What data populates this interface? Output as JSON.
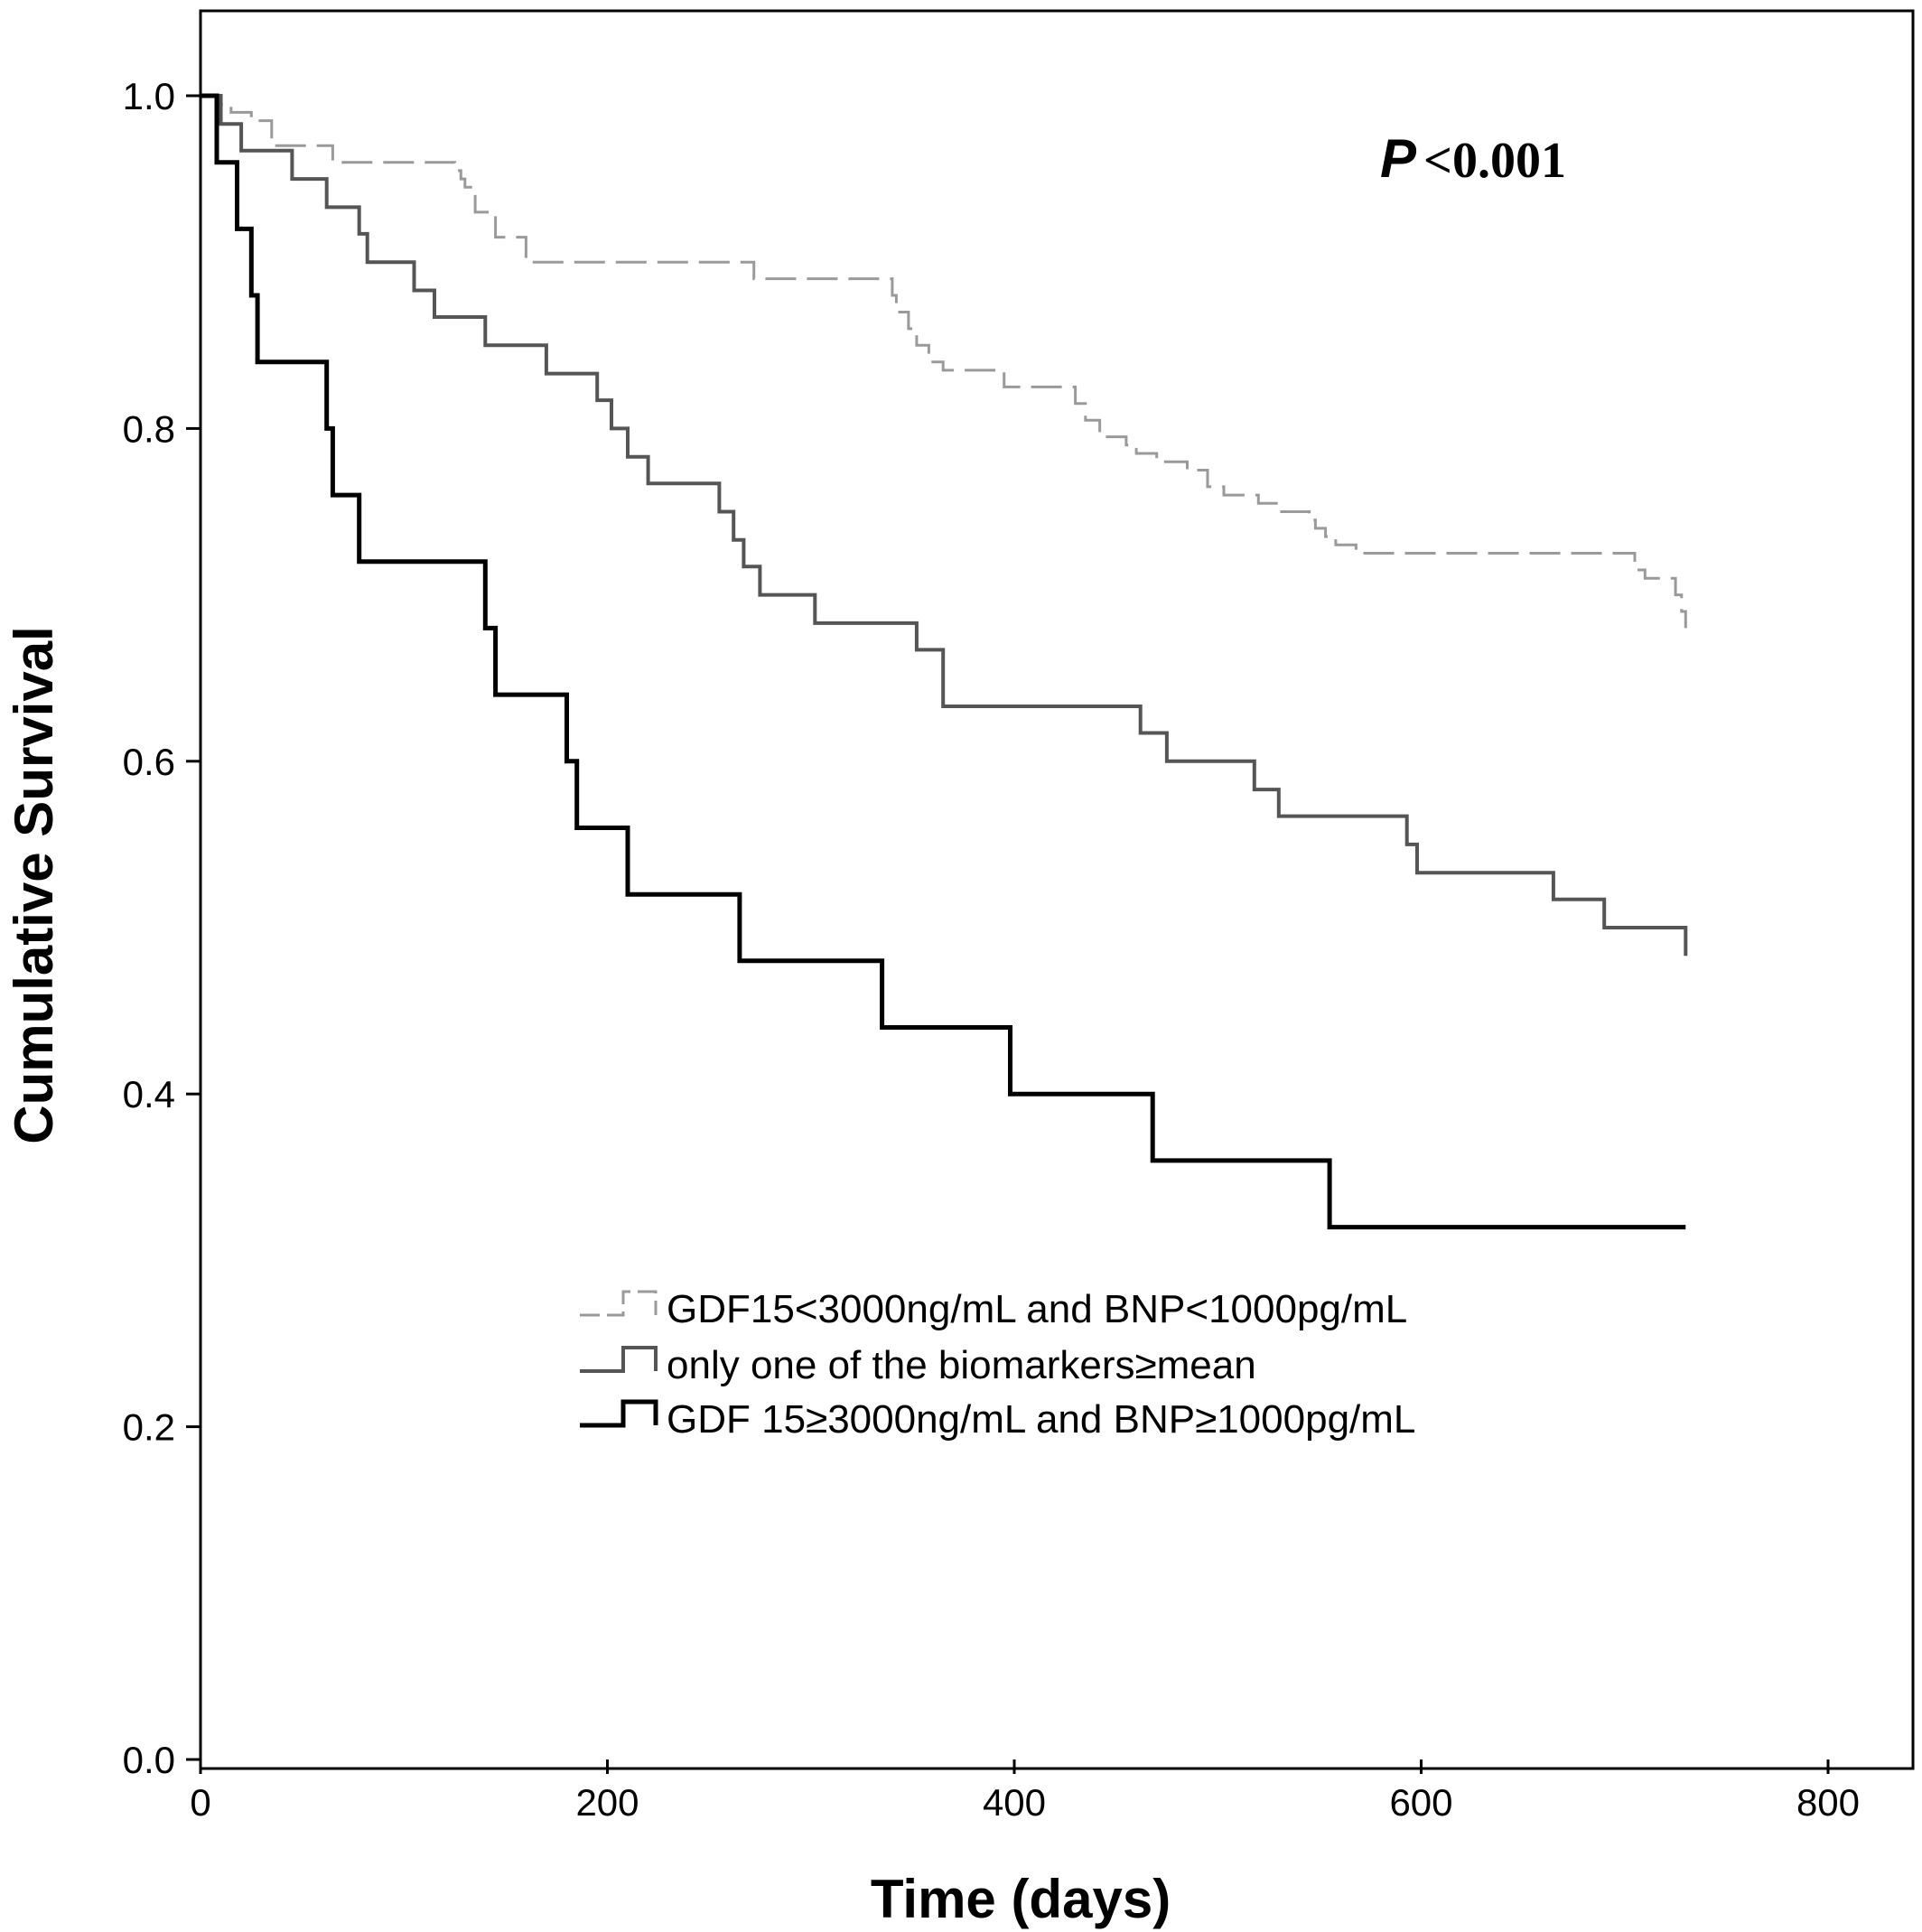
{
  "chart_data": {
    "type": "line",
    "subtype": "kaplan-meier step",
    "title": "",
    "xlabel": "Time (days)",
    "ylabel": "Cumulative Survival",
    "xlim": [
      0,
      800
    ],
    "ylim": [
      0,
      1.0
    ],
    "x_ticks": [
      0,
      200,
      400,
      600,
      800
    ],
    "y_ticks": [
      0.0,
      0.2,
      0.4,
      0.6,
      0.8,
      1.0
    ],
    "x_tick_labels": [
      "0",
      "200",
      "400",
      "600",
      "800"
    ],
    "y_tick_labels": [
      "0.0",
      "0.2",
      "0.4",
      "0.6",
      "0.8",
      "1.0"
    ],
    "grid": false,
    "legend_position": "center-bottom",
    "annotation": {
      "italic": "P",
      "text": "<0.001"
    },
    "series": [
      {
        "name": "GDF15<3000ng/mL and BNP<1000pg/mL",
        "color": "#9a9a9a",
        "dash": "dashed",
        "x": [
          0,
          8,
          15,
          25,
          35,
          65,
          125,
          128,
          130,
          135,
          145,
          160,
          272,
          340,
          342,
          348,
          352,
          358,
          365,
          370,
          395,
          430,
          435,
          442,
          455,
          460,
          470,
          485,
          495,
          503,
          520,
          530,
          545,
          548,
          553,
          558,
          568,
          705,
          710,
          725,
          728,
          730
        ],
        "y": [
          1.0,
          0.995,
          0.99,
          0.985,
          0.97,
          0.96,
          0.955,
          0.95,
          0.945,
          0.93,
          0.915,
          0.9,
          0.89,
          0.88,
          0.87,
          0.86,
          0.85,
          0.84,
          0.835,
          0.835,
          0.825,
          0.815,
          0.805,
          0.795,
          0.79,
          0.785,
          0.78,
          0.775,
          0.765,
          0.76,
          0.755,
          0.75,
          0.745,
          0.74,
          0.735,
          0.73,
          0.725,
          0.715,
          0.71,
          0.7,
          0.69,
          0.68
        ]
      },
      {
        "name": "only one of the biomarkers≥mean",
        "color": "#555555",
        "dash": "solid",
        "x": [
          0,
          10,
          20,
          45,
          62,
          78,
          82,
          105,
          115,
          140,
          170,
          195,
          202,
          210,
          220,
          255,
          262,
          267,
          275,
          302,
          352,
          365,
          462,
          475,
          518,
          530,
          593,
          598,
          665,
          690,
          730
        ],
        "y": [
          1.0,
          0.983,
          0.967,
          0.95,
          0.933,
          0.917,
          0.9,
          0.883,
          0.867,
          0.85,
          0.833,
          0.817,
          0.8,
          0.783,
          0.767,
          0.75,
          0.733,
          0.717,
          0.7,
          0.683,
          0.667,
          0.633,
          0.617,
          0.6,
          0.583,
          0.567,
          0.55,
          0.533,
          0.517,
          0.5,
          0.483
        ]
      },
      {
        "name": "GDF 15≥3000ng/mL and BNP≥1000pg/mL",
        "color": "#000000",
        "dash": "solid",
        "x": [
          0,
          8,
          18,
          25,
          28,
          62,
          65,
          78,
          140,
          145,
          180,
          185,
          210,
          265,
          335,
          398,
          468,
          555,
          730
        ],
        "y": [
          1.0,
          0.96,
          0.92,
          0.88,
          0.84,
          0.8,
          0.76,
          0.72,
          0.68,
          0.64,
          0.6,
          0.56,
          0.52,
          0.48,
          0.44,
          0.4,
          0.36,
          0.32,
          0.32
        ]
      }
    ]
  }
}
